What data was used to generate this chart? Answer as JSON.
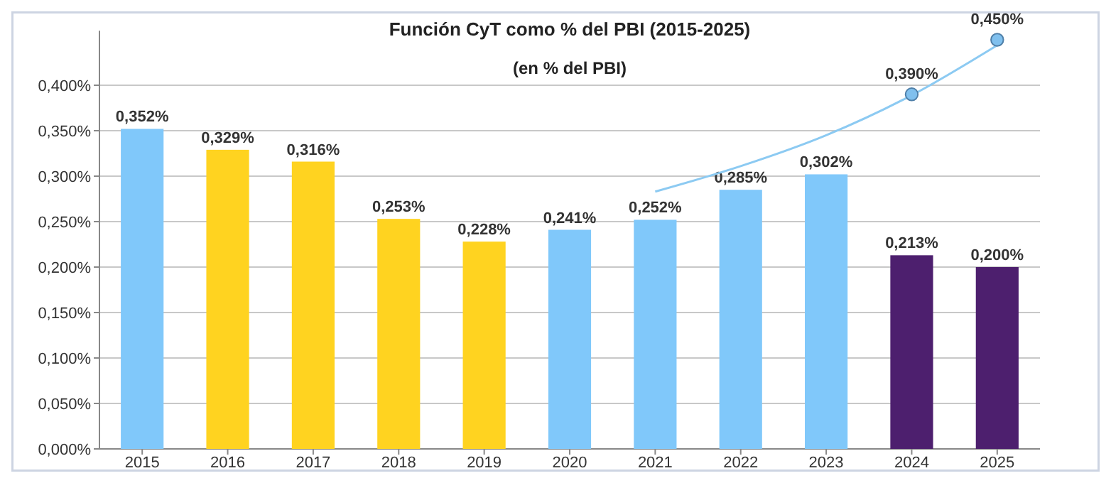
{
  "chart_data": {
    "type": "bar",
    "title": "Función CyT como % del PBI (2015-2025)",
    "subtitle": "(en % del PBI)",
    "categories": [
      "2015",
      "2016",
      "2017",
      "2018",
      "2019",
      "2020",
      "2021",
      "2022",
      "2023",
      "2024",
      "2025"
    ],
    "series": [
      {
        "values": [
          0.352,
          0.329,
          0.316,
          0.253,
          0.228,
          0.241,
          0.252,
          0.285,
          0.302,
          0.213,
          0.2
        ],
        "colors": [
          "#80c8fa",
          "#ffd320",
          "#ffd320",
          "#ffd320",
          "#ffd320",
          "#80c8fa",
          "#80c8fa",
          "#80c8fa",
          "#80c8fa",
          "#4d1f6e",
          "#4d1f6e"
        ],
        "value_labels": [
          "0,352%",
          "0,329%",
          "0,316%",
          "0,253%",
          "0,228%",
          "0,241%",
          "0,252%",
          "0,285%",
          "0,302%",
          "0,213%",
          "0,200%"
        ]
      },
      {
        "type": "line",
        "color": "#8ccaf2",
        "marker": "none",
        "values": [
          null,
          null,
          null,
          null,
          null,
          null,
          0.283,
          0.311,
          0.345,
          0.389,
          0.444
        ]
      },
      {
        "type": "scatter",
        "color": "#80c0ee",
        "marker": "circle",
        "values": [
          null,
          null,
          null,
          null,
          null,
          null,
          null,
          null,
          null,
          0.39,
          0.45
        ],
        "value_labels": [
          null,
          null,
          null,
          null,
          null,
          null,
          null,
          null,
          null,
          "0,390%",
          "0,450%"
        ]
      }
    ],
    "ylim": [
      0,
      0.46
    ],
    "yticks": [
      {
        "value": 0,
        "label": "0,000%"
      },
      {
        "value": 0.05,
        "label": "0,050%"
      },
      {
        "value": 0.1,
        "label": "0,100%"
      },
      {
        "value": 0.15,
        "label": "0,150%"
      },
      {
        "value": 0.2,
        "label": "0,200%"
      },
      {
        "value": 0.25,
        "label": "0,250%"
      },
      {
        "value": 0.3,
        "label": "0,300%"
      },
      {
        "value": 0.35,
        "label": "0,350%"
      },
      {
        "value": 0.4,
        "label": "0,400%"
      }
    ],
    "grid": "y"
  }
}
